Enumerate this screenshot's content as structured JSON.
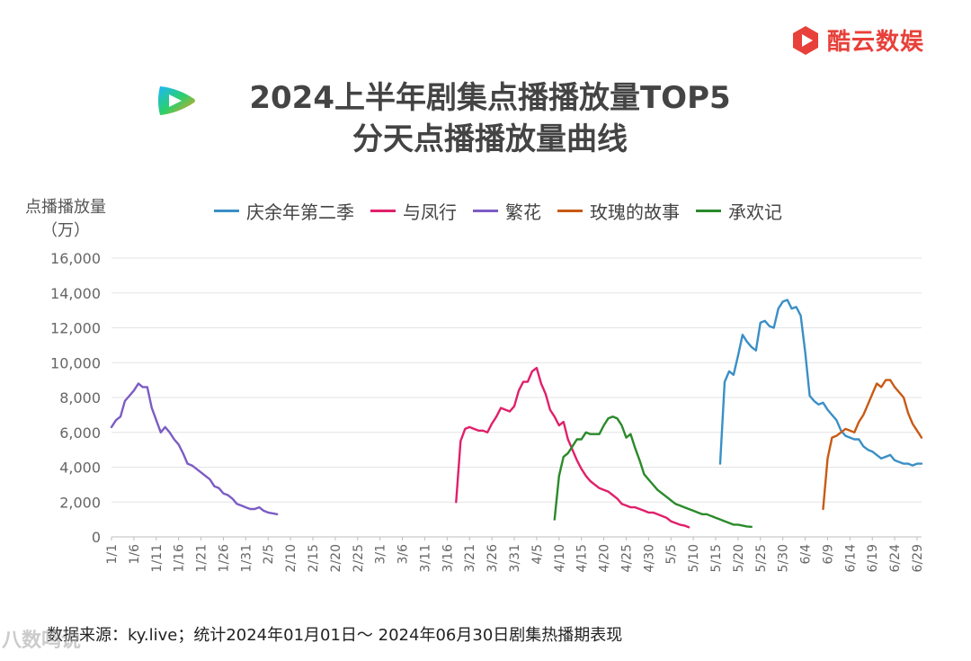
{
  "brand": {
    "name": "酷云数娱",
    "color": "#e8403a"
  },
  "title_lines": [
    "2024上半年剧集点播播放量TOP5",
    "分天点播播放量曲线"
  ],
  "y_axis_label": [
    "点播播放量",
    "（万）"
  ],
  "source": "数据来源：ky.live；统计2024年01月01日～ 2024年06月30日剧集热播期表现",
  "watermark": "八数鸣说",
  "chart_data": {
    "type": "line",
    "title": "2024上半年剧集点播播放量TOP5 分天点播播放量曲线",
    "ylabel": "点播播放量（万）",
    "xlabel": "",
    "ylim": [
      0,
      16000
    ],
    "yticks": [
      0,
      2000,
      4000,
      6000,
      8000,
      10000,
      12000,
      14000,
      16000
    ],
    "ytick_labels": [
      "0",
      "2,000",
      "4,000",
      "6,000",
      "8,000",
      "10,000",
      "12,000",
      "14,000",
      "16,000"
    ],
    "x_type": "date",
    "x_range": [
      "2024-01-01",
      "2024-06-30"
    ],
    "xtick_labels": [
      "1/1",
      "1/6",
      "1/11",
      "1/16",
      "1/21",
      "1/26",
      "1/31",
      "2/5",
      "2/10",
      "2/15",
      "2/20",
      "2/25",
      "3/1",
      "3/6",
      "3/11",
      "3/16",
      "3/21",
      "3/26",
      "3/31",
      "4/5",
      "4/10",
      "4/15",
      "4/20",
      "4/25",
      "4/30",
      "5/5",
      "5/10",
      "5/15",
      "5/20",
      "5/25",
      "5/30",
      "6/4",
      "6/9",
      "6/14",
      "6/19",
      "6/24",
      "6/29"
    ],
    "xtick_dates": [
      "2024-01-01",
      "2024-01-06",
      "2024-01-11",
      "2024-01-16",
      "2024-01-21",
      "2024-01-26",
      "2024-01-31",
      "2024-02-05",
      "2024-02-10",
      "2024-02-15",
      "2024-02-20",
      "2024-02-25",
      "2024-03-01",
      "2024-03-06",
      "2024-03-11",
      "2024-03-16",
      "2024-03-21",
      "2024-03-26",
      "2024-03-31",
      "2024-04-05",
      "2024-04-10",
      "2024-04-15",
      "2024-04-20",
      "2024-04-25",
      "2024-04-30",
      "2024-05-05",
      "2024-05-10",
      "2024-05-15",
      "2024-05-20",
      "2024-05-25",
      "2024-05-30",
      "2024-06-04",
      "2024-06-09",
      "2024-06-14",
      "2024-06-19",
      "2024-06-24",
      "2024-06-29"
    ],
    "grid": true,
    "legend_position": "top",
    "series": [
      {
        "name": "庆余年第二季",
        "color": "#3a8fc6",
        "start": "2024-05-16",
        "values": [
          4200,
          8900,
          9500,
          9300,
          10400,
          11600,
          11200,
          10900,
          10700,
          12300,
          12400,
          12100,
          12000,
          13100,
          13500,
          13600,
          13100,
          13200,
          12700,
          10600,
          8100,
          7800,
          7600,
          7700,
          7300,
          7000,
          6700,
          6100,
          5800,
          5700,
          5600,
          5600,
          5200,
          5000,
          4900,
          4700,
          4500,
          4600,
          4700,
          4400,
          4300,
          4200,
          4200,
          4100,
          4200,
          4200
        ]
      },
      {
        "name": "与凤行",
        "color": "#e0206a",
        "start": "2024-03-18",
        "values": [
          2000,
          5500,
          6200,
          6300,
          6200,
          6100,
          6100,
          6000,
          6500,
          6900,
          7400,
          7300,
          7200,
          7500,
          8400,
          8900,
          8900,
          9500,
          9700,
          8800,
          8200,
          7300,
          6900,
          6400,
          6600,
          5600,
          5000,
          4400,
          3900,
          3500,
          3200,
          3000,
          2800,
          2700,
          2600,
          2400,
          2200,
          1900,
          1800,
          1700,
          1700,
          1600,
          1500,
          1400,
          1400,
          1300,
          1200,
          1100,
          900,
          800,
          700,
          650,
          550
        ]
      },
      {
        "name": "繁花",
        "color": "#7c5cc4",
        "start": "2024-01-01",
        "values": [
          6300,
          6700,
          6900,
          7800,
          8100,
          8400,
          8800,
          8600,
          8600,
          7400,
          6700,
          6000,
          6300,
          6000,
          5600,
          5300,
          4800,
          4200,
          4100,
          3900,
          3700,
          3500,
          3300,
          2900,
          2800,
          2500,
          2400,
          2200,
          1900,
          1800,
          1700,
          1600,
          1600,
          1700,
          1500,
          1400,
          1350,
          1300
        ]
      },
      {
        "name": "玫瑰的故事",
        "color": "#c85a14",
        "start": "2024-06-08",
        "values": [
          1600,
          4500,
          5700,
          5800,
          6000,
          6200,
          6100,
          6000,
          6600,
          7000,
          7600,
          8200,
          8800,
          8600,
          9000,
          9000,
          8600,
          8300,
          8000,
          7100,
          6500,
          6100,
          5700
        ]
      },
      {
        "name": "承欢记",
        "color": "#2a8a2a",
        "start": "2024-04-09",
        "values": [
          1000,
          3500,
          4600,
          4800,
          5200,
          5600,
          5600,
          6000,
          5900,
          5900,
          5900,
          6400,
          6800,
          6900,
          6800,
          6400,
          5700,
          5900,
          5100,
          4400,
          3600,
          3300,
          3000,
          2700,
          2500,
          2300,
          2100,
          1900,
          1800,
          1700,
          1600,
          1500,
          1400,
          1300,
          1300,
          1200,
          1100,
          1000,
          900,
          800,
          700,
          700,
          650,
          600,
          580
        ]
      }
    ]
  }
}
